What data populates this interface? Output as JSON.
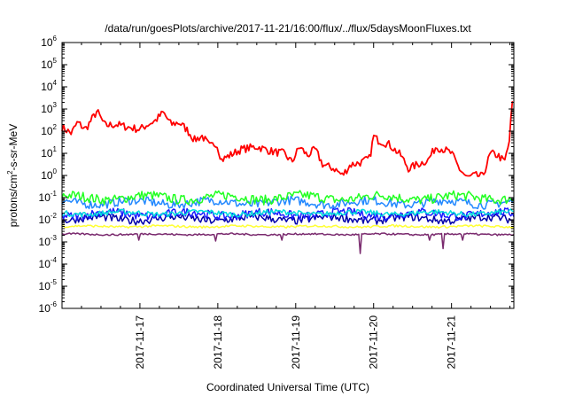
{
  "chart_data": {
    "type": "line",
    "title": "/data/run/goesPlots/archive/2017-11-21/16:00/flux/../flux/5daysMoonFluxes.txt",
    "xlabel": "Coordinated Universal Time (UTC)",
    "ylabel": {
      "base": "protons/cm",
      "sup": "2",
      "rest": "-s-sr-MeV"
    },
    "yscale": "log",
    "ylim_exp": [
      -6,
      6
    ],
    "yticks": [
      {
        "base": "10",
        "exp": "-6"
      },
      {
        "base": "10",
        "exp": "-5"
      },
      {
        "base": "10",
        "exp": "-4"
      },
      {
        "base": "10",
        "exp": "-3"
      },
      {
        "base": "10",
        "exp": "-2"
      },
      {
        "base": "10",
        "exp": "-1"
      },
      {
        "base": "10",
        "exp": "0"
      },
      {
        "base": "10",
        "exp": "1"
      },
      {
        "base": "10",
        "exp": "2"
      },
      {
        "base": "10",
        "exp": "3"
      },
      {
        "base": "10",
        "exp": "4"
      },
      {
        "base": "10",
        "exp": "5"
      },
      {
        "base": "10",
        "exp": "6"
      }
    ],
    "xlim_days": [
      0,
      5.8
    ],
    "xticks": [
      {
        "label": "2017-11-17",
        "day": 1
      },
      {
        "label": "2017-11-18",
        "day": 2
      },
      {
        "label": "2017-11-19",
        "day": 3
      },
      {
        "label": "2017-11-20",
        "day": 4
      },
      {
        "label": "2017-11-21",
        "day": 5
      }
    ],
    "grid": false,
    "series": [
      {
        "color": "#ff0000",
        "level": 20,
        "noise": 0.18,
        "points": [
          [
            0,
            150
          ],
          [
            0.12,
            80
          ],
          [
            0.2,
            250
          ],
          [
            0.3,
            120
          ],
          [
            0.45,
            800
          ],
          [
            0.55,
            180
          ],
          [
            0.7,
            200
          ],
          [
            0.85,
            150
          ],
          [
            1.0,
            120
          ],
          [
            1.1,
            200
          ],
          [
            1.2,
            300
          ],
          [
            1.3,
            700
          ],
          [
            1.4,
            200
          ],
          [
            1.5,
            250
          ],
          [
            1.6,
            120
          ],
          [
            1.7,
            40
          ],
          [
            1.8,
            60
          ],
          [
            1.9,
            20
          ],
          [
            1.98,
            30
          ],
          [
            2.05,
            5
          ],
          [
            2.15,
            8
          ],
          [
            2.3,
            15
          ],
          [
            2.5,
            20
          ],
          [
            2.7,
            12
          ],
          [
            2.85,
            10
          ],
          [
            2.95,
            4
          ],
          [
            3.05,
            20
          ],
          [
            3.15,
            8
          ],
          [
            3.25,
            15
          ],
          [
            3.35,
            3
          ],
          [
            3.5,
            2
          ],
          [
            3.6,
            1
          ],
          [
            3.7,
            3
          ],
          [
            3.85,
            4
          ],
          [
            3.95,
            6
          ],
          [
            4.0,
            60
          ],
          [
            4.05,
            40
          ],
          [
            4.2,
            25
          ],
          [
            4.35,
            8
          ],
          [
            4.45,
            2
          ],
          [
            4.55,
            3
          ],
          [
            4.7,
            5
          ],
          [
            4.8,
            20
          ],
          [
            4.9,
            15
          ],
          [
            5.0,
            10
          ],
          [
            5.1,
            2
          ],
          [
            5.2,
            0.8
          ],
          [
            5.3,
            1
          ],
          [
            5.4,
            0.9
          ],
          [
            5.5,
            10
          ],
          [
            5.6,
            8
          ],
          [
            5.68,
            4
          ],
          [
            5.74,
            30
          ],
          [
            5.78,
            2000
          ]
        ]
      },
      {
        "color": "#22ff22",
        "level": 0.1,
        "noise": 0.22,
        "points": []
      },
      {
        "color": "#2288ff",
        "level": 0.06,
        "noise": 0.2,
        "points": []
      },
      {
        "color": "#00dddd",
        "level": 0.02,
        "noise": 0.12,
        "points": []
      },
      {
        "color": "#1a1aff",
        "level": 0.018,
        "noise": 0.2,
        "points": []
      },
      {
        "color": "#0000aa",
        "level": 0.011,
        "noise": 0.18,
        "points": []
      },
      {
        "color": "#ffff33",
        "level": 0.005,
        "noise": 0.05,
        "points": []
      },
      {
        "color": "#7a2a6e",
        "level": 0.0022,
        "noise": 0.04,
        "dips": [
          [
            0.98,
            0.0012
          ],
          [
            1.98,
            0.0011
          ],
          [
            2.82,
            0.0012
          ],
          [
            3.83,
            0.0003
          ],
          [
            4.72,
            0.0012
          ],
          [
            4.9,
            0.0005
          ],
          [
            5.15,
            0.0012
          ]
        ],
        "points": []
      }
    ]
  }
}
